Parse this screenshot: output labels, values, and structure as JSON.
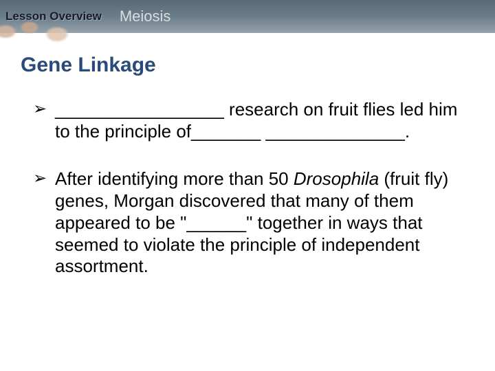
{
  "header": {
    "lesson_label": "Lesson Overview",
    "topic": "Meiosis"
  },
  "section": {
    "title": "Gene Linkage"
  },
  "bullets": [
    {
      "text": "_________________ research on fruit flies led him to the principle of_______ ______________."
    },
    {
      "prefix": "After identifying more than 50 ",
      "italic": "Drosophila",
      "suffix": " (fruit fly) genes, Morgan discovered that many of them appeared to be \"______\" together in ways that seemed to violate the principle of independent assortment."
    }
  ],
  "colors": {
    "header_grad_top": "#5a6b78",
    "header_grad_bottom": "#95a2ab",
    "title_color": "#2a4a7a",
    "text_color": "#000000",
    "bg_color": "#ffffff"
  }
}
